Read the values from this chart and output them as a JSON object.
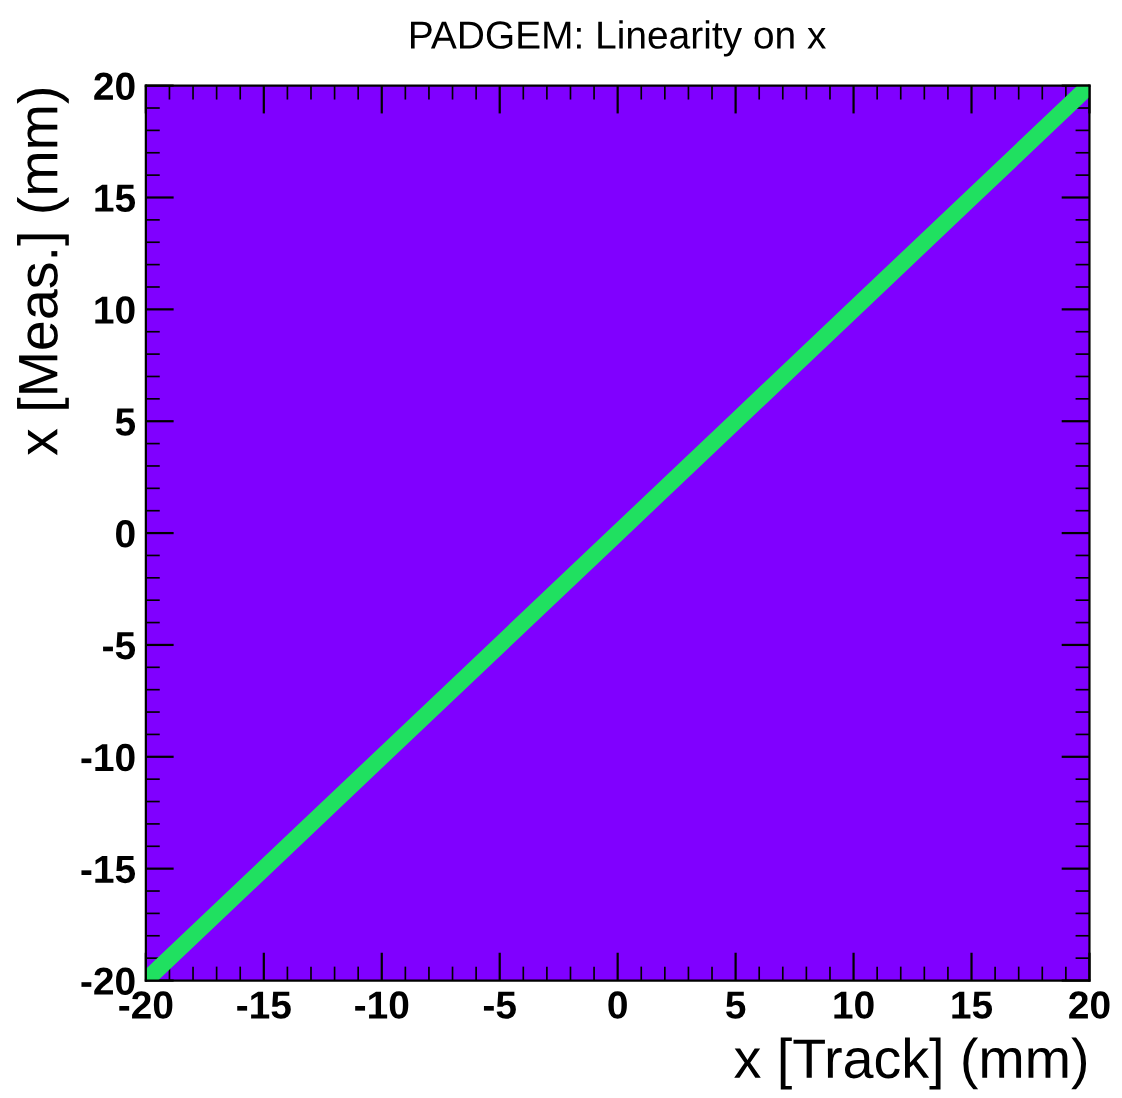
{
  "chart_data": {
    "type": "line",
    "title": "PADGEM: Linearity on x",
    "xlabel": "x [Track] (mm)",
    "ylabel": "x [Meas.] (mm)",
    "x": [
      -20,
      -15,
      -10,
      -5,
      0,
      5,
      10,
      15,
      20
    ],
    "series": [
      {
        "color": "#20e060",
        "values": [
          -20,
          -15,
          -10,
          -5,
          0,
          5,
          10,
          15,
          20
        ]
      }
    ],
    "xlim": [
      -20,
      20
    ],
    "ylim": [
      -20,
      20
    ],
    "xticks": [
      -20,
      -15,
      -10,
      -5,
      0,
      5,
      10,
      15,
      20
    ],
    "yticks": [
      -20,
      -15,
      -10,
      -5,
      0,
      5,
      10,
      15,
      20
    ],
    "grid": false,
    "legend": false,
    "marker": "none",
    "line_style": "solid"
  }
}
